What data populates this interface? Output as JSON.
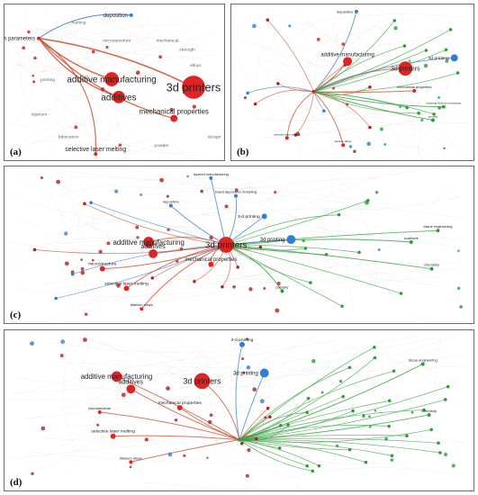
{
  "colors": {
    "red": "#e02424",
    "dark_red": "#b22020",
    "blue": "#2f7fd3",
    "green": "#2e9b3a",
    "edge_red": "#c8553a",
    "edge_blue": "#4a86c8",
    "edge_green": "#3aa043"
  },
  "panels": [
    {
      "tag": "(a)",
      "nodes": [
        {
          "id": "deposition",
          "label": "deposition",
          "color": "blue",
          "size": 2,
          "fs": 6
        },
        {
          "id": "process_param",
          "label": "process parameters",
          "color": "red",
          "size": 2,
          "fs": 6
        },
        {
          "id": "additive_manufacturing",
          "label": "additive manufacturing",
          "color": "red",
          "size": 8,
          "fs": 10
        },
        {
          "id": "additives",
          "label": "additives",
          "color": "red",
          "size": 7,
          "fs": 10
        },
        {
          "id": "3d_printers",
          "label": "3d printers",
          "color": "red",
          "size": 13,
          "fs": 13
        },
        {
          "id": "mechanical_properties",
          "label": "mechanical properties",
          "color": "red",
          "size": 4,
          "fs": 8
        },
        {
          "id": "selective_laser_melting",
          "label": "selective laser melting",
          "color": "red",
          "size": 2,
          "fs": 7
        }
      ],
      "faint_labels": [
        "microstructure",
        "mechanical",
        "strength",
        "fabrication",
        "titanium",
        "alloys",
        "printing",
        "powder",
        "design",
        "melting"
      ]
    },
    {
      "tag": "(b)",
      "nodes": [
        {
          "id": "b_deposition",
          "label": "deposition",
          "color": "blue",
          "size": 2,
          "fs": 4
        },
        {
          "id": "b_additive",
          "label": "additive manufacturing",
          "color": "red",
          "size": 5,
          "fs": 6
        },
        {
          "id": "b_3dprinters",
          "label": "3d printers",
          "color": "red",
          "size": 8,
          "fs": 7
        },
        {
          "id": "b_3dprinting",
          "label": "3d printing",
          "color": "blue",
          "size": 4,
          "fs": 5
        },
        {
          "id": "b_mech",
          "label": "mechanical properties",
          "color": "red",
          "size": 2,
          "fs": 4
        },
        {
          "id": "b_hub",
          "label": "",
          "color": "red",
          "size": 2,
          "fs": 4
        },
        {
          "id": "b_sem",
          "label": "scanning electron microscopy",
          "color": "green",
          "size": 2,
          "fs": 3
        },
        {
          "id": "b_porosity",
          "label": "porosity",
          "color": "green",
          "size": 2,
          "fs": 3
        },
        {
          "id": "b_titanium",
          "label": "titanium alloys",
          "color": "red",
          "size": 2,
          "fs": 3
        },
        {
          "id": "b_slm",
          "label": "selective laser melting",
          "color": "red",
          "size": 2,
          "fs": 3
        }
      ]
    },
    {
      "tag": "(c)",
      "nodes": [
        {
          "id": "c_layered",
          "label": "layered manufacturing",
          "color": "blue",
          "size": 2,
          "fs": 4
        },
        {
          "id": "c_fdm",
          "label": "fused deposition modeling",
          "color": "blue",
          "size": 2,
          "fs": 4
        },
        {
          "id": "c_deposition",
          "label": "deposition",
          "color": "blue",
          "size": 2,
          "fs": 4
        },
        {
          "id": "c_3dprint1",
          "label": "3-d printing",
          "color": "blue",
          "size": 3,
          "fs": 5
        },
        {
          "id": "c_3dprint2",
          "label": "3d printing",
          "color": "blue",
          "size": 5,
          "fs": 6
        },
        {
          "id": "c_additive",
          "label": "additive manufacturing",
          "color": "red",
          "size": 6,
          "fs": 8
        },
        {
          "id": "c_3dprinters",
          "label": "3d printers",
          "color": "red",
          "size": 9,
          "fs": 10
        },
        {
          "id": "c_additives",
          "label": "additives",
          "color": "red",
          "size": 5,
          "fs": 7
        },
        {
          "id": "c_mech",
          "label": "mechanical properties",
          "color": "red",
          "size": 3,
          "fs": 6
        },
        {
          "id": "c_micro",
          "label": "microstructure",
          "color": "red",
          "size": 3,
          "fs": 5
        },
        {
          "id": "c_slm",
          "label": "selective laser melting",
          "color": "red",
          "size": 3,
          "fs": 5
        },
        {
          "id": "c_titanium",
          "label": "titanium alloys",
          "color": "red",
          "size": 2,
          "fs": 4
        },
        {
          "id": "c_tissue",
          "label": "tissue engineering",
          "color": "green",
          "size": 2,
          "fs": 4
        },
        {
          "id": "c_scaffolds",
          "label": "scaffolds",
          "color": "green",
          "size": 2,
          "fs": 4
        },
        {
          "id": "c_chemistry",
          "label": "chemistry",
          "color": "green",
          "size": 2,
          "fs": 4
        },
        {
          "id": "c_porosity",
          "label": "porosity",
          "color": "green",
          "size": 2,
          "fs": 4
        }
      ]
    },
    {
      "tag": "(d)",
      "nodes": [
        {
          "id": "d_3dprint1",
          "label": "3-d printing",
          "color": "blue",
          "size": 3,
          "fs": 5
        },
        {
          "id": "d_3dprint2",
          "label": "3d printing",
          "color": "blue",
          "size": 5,
          "fs": 6
        },
        {
          "id": "d_additive",
          "label": "additive manufacturing",
          "color": "red",
          "size": 6,
          "fs": 8
        },
        {
          "id": "d_3dprinters",
          "label": "3d printers",
          "color": "red",
          "size": 9,
          "fs": 9
        },
        {
          "id": "d_additives",
          "label": "additives",
          "color": "red",
          "size": 5,
          "fs": 7
        },
        {
          "id": "d_mech",
          "label": "mechanical properties",
          "color": "red",
          "size": 3,
          "fs": 5
        },
        {
          "id": "d_micro",
          "label": "microstructure",
          "color": "red",
          "size": 2,
          "fs": 4
        },
        {
          "id": "d_slm",
          "label": "selective laser melting",
          "color": "red",
          "size": 3,
          "fs": 5
        },
        {
          "id": "d_titanium",
          "label": "titanium alloys",
          "color": "red",
          "size": 2,
          "fs": 4
        },
        {
          "id": "d_tissue",
          "label": "tissue engineering",
          "color": "green",
          "size": 2,
          "fs": 4
        },
        {
          "id": "d_chemistry",
          "label": "chemistry",
          "color": "green",
          "size": 2,
          "fs": 4
        },
        {
          "id": "d_hub",
          "label": "",
          "color": "green",
          "size": 2,
          "fs": 4
        }
      ]
    }
  ]
}
